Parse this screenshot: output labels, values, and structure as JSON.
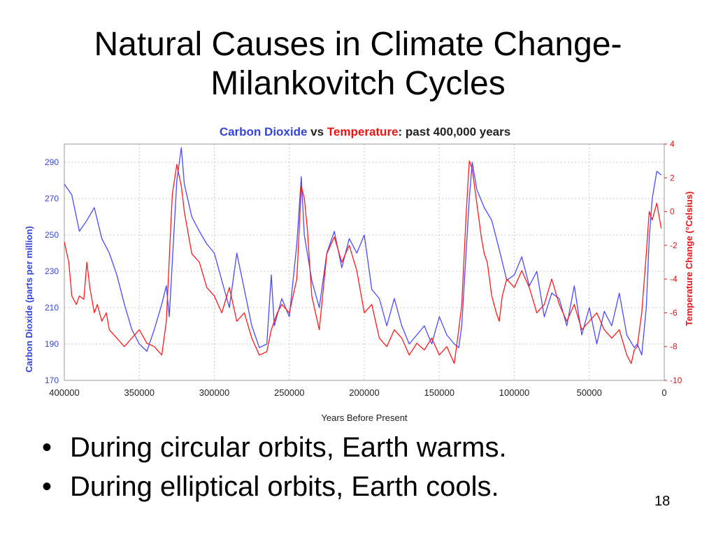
{
  "slide": {
    "title_line1": "Natural Causes in Climate Change-",
    "title_line2": "Milankovitch Cycles",
    "bullets": [
      "During circular orbits, Earth warms.",
      "During elliptical orbits, Earth cools."
    ],
    "bullet_glyph": "•",
    "page_number": "18"
  },
  "colors": {
    "co2": "#4a4aff",
    "temperature": "#ff1a1a",
    "grid": "#c8c8c8"
  },
  "chart_data": {
    "type": "line",
    "title_parts": [
      {
        "text": "Carbon Dioxide",
        "color": "#3344dd"
      },
      {
        "text": " vs ",
        "color": "#222222"
      },
      {
        "text": "Temperature",
        "color": "#ee1111"
      },
      {
        "text": ": past 400,000 years",
        "color": "#222222"
      }
    ],
    "xlabel": "Years Before Present",
    "ylabel": "Carbon Dioxide (parts per million)",
    "y2label": "Temperature Change (°Celsius)",
    "xlim": [
      400000,
      0
    ],
    "ylim": [
      170,
      300
    ],
    "y2lim": [
      -10,
      4
    ],
    "x_ticks": [
      "400000",
      "350000",
      "300000",
      "250000",
      "200000",
      "150000",
      "100000",
      "50000",
      "0"
    ],
    "y_ticks": [
      "170",
      "190",
      "210",
      "230",
      "250",
      "270",
      "290"
    ],
    "y2_ticks": [
      "-10",
      "-8",
      "-6",
      "-4",
      "-2",
      "0",
      "2",
      "4"
    ],
    "grid": true,
    "series": [
      {
        "name": "Carbon Dioxide",
        "axis": "left",
        "x": [
          400000,
          395000,
          390000,
          385000,
          380000,
          375000,
          370000,
          365000,
          360000,
          355000,
          350000,
          345000,
          340000,
          335000,
          332000,
          330000,
          325000,
          322000,
          320000,
          315000,
          310000,
          305000,
          300000,
          295000,
          290000,
          285000,
          280000,
          275000,
          270000,
          265000,
          262000,
          260000,
          255000,
          250000,
          245000,
          242000,
          240000,
          238000,
          235000,
          230000,
          225000,
          220000,
          215000,
          210000,
          205000,
          200000,
          195000,
          190000,
          185000,
          180000,
          175000,
          170000,
          165000,
          160000,
          155000,
          150000,
          145000,
          140000,
          137000,
          135000,
          130000,
          128000,
          125000,
          120000,
          115000,
          110000,
          105000,
          100000,
          95000,
          90000,
          85000,
          80000,
          75000,
          70000,
          65000,
          60000,
          55000,
          50000,
          45000,
          40000,
          35000,
          30000,
          25000,
          20000,
          18000,
          15000,
          12000,
          10000,
          8000,
          5000,
          2000
        ],
        "values": [
          278,
          272,
          252,
          258,
          265,
          248,
          240,
          228,
          212,
          198,
          190,
          186,
          198,
          212,
          222,
          205,
          280,
          298,
          278,
          260,
          252,
          245,
          240,
          225,
          210,
          240,
          220,
          200,
          188,
          190,
          228,
          200,
          215,
          205,
          245,
          282,
          250,
          240,
          225,
          210,
          240,
          252,
          232,
          248,
          240,
          250,
          220,
          215,
          200,
          215,
          200,
          190,
          195,
          200,
          190,
          205,
          195,
          190,
          188,
          200,
          270,
          290,
          275,
          265,
          258,
          242,
          225,
          228,
          238,
          222,
          230,
          205,
          218,
          215,
          200,
          222,
          195,
          210,
          190,
          208,
          200,
          218,
          195,
          188,
          190,
          184,
          210,
          248,
          270,
          285,
          283
        ]
      },
      {
        "name": "Temperature",
        "axis": "right",
        "x": [
          400000,
          397000,
          395000,
          392000,
          390000,
          387000,
          385000,
          383000,
          380000,
          378000,
          375000,
          372000,
          370000,
          365000,
          360000,
          355000,
          350000,
          345000,
          340000,
          335000,
          332000,
          328000,
          325000,
          322000,
          320000,
          318000,
          315000,
          310000,
          305000,
          300000,
          295000,
          290000,
          285000,
          280000,
          275000,
          270000,
          265000,
          262000,
          258000,
          255000,
          250000,
          245000,
          242000,
          240000,
          238000,
          235000,
          230000,
          225000,
          220000,
          215000,
          210000,
          205000,
          200000,
          195000,
          190000,
          185000,
          180000,
          175000,
          170000,
          165000,
          160000,
          155000,
          150000,
          145000,
          140000,
          137000,
          135000,
          132000,
          130000,
          128000,
          125000,
          122000,
          120000,
          118000,
          115000,
          112000,
          110000,
          108000,
          105000,
          100000,
          95000,
          90000,
          85000,
          80000,
          75000,
          70000,
          65000,
          60000,
          55000,
          50000,
          45000,
          40000,
          35000,
          30000,
          25000,
          22000,
          20000,
          18000,
          15000,
          12000,
          10000,
          8000,
          5000,
          2000
        ],
        "values": [
          -1.8,
          -3.0,
          -5.0,
          -5.5,
          -5.0,
          -5.2,
          -3.0,
          -4.5,
          -6.0,
          -5.5,
          -6.5,
          -6.0,
          -7.0,
          -7.5,
          -8.0,
          -7.5,
          -7.0,
          -7.8,
          -8.0,
          -8.5,
          -6.5,
          1.0,
          2.8,
          1.5,
          0.0,
          -1.0,
          -2.5,
          -3.0,
          -4.5,
          -5.0,
          -6.0,
          -4.5,
          -6.5,
          -6.0,
          -7.5,
          -8.5,
          -8.3,
          -7.0,
          -6.0,
          -5.5,
          -6.0,
          -4.0,
          1.5,
          0.8,
          -1.0,
          -5.0,
          -7.0,
          -2.5,
          -1.5,
          -3.0,
          -2.0,
          -3.5,
          -6.0,
          -5.5,
          -7.5,
          -8.0,
          -7.0,
          -7.5,
          -8.5,
          -7.8,
          -8.2,
          -7.5,
          -8.5,
          -8.0,
          -9.0,
          -7.0,
          -5.5,
          0.0,
          3.0,
          2.5,
          0.5,
          -1.5,
          -2.5,
          -3.0,
          -5.0,
          -6.0,
          -6.5,
          -5.0,
          -4.0,
          -4.5,
          -3.5,
          -4.5,
          -6.0,
          -5.5,
          -4.0,
          -5.5,
          -6.5,
          -5.5,
          -7.0,
          -6.5,
          -6.0,
          -7.0,
          -7.5,
          -7.0,
          -8.5,
          -9.0,
          -8.2,
          -8.0,
          -6.0,
          -2.5,
          0.0,
          -0.5,
          0.5,
          -1.0
        ]
      }
    ]
  }
}
